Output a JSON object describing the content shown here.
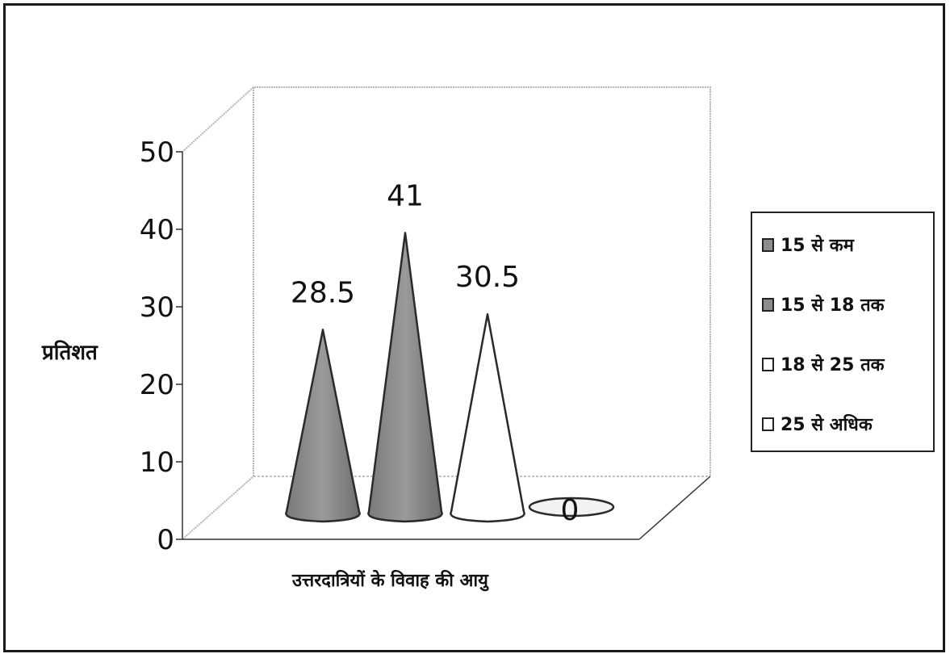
{
  "chart_data": {
    "type": "bar",
    "bar_shape": "cone",
    "categories": [
      "15 से कम",
      "15 से 18 तक",
      "18 से 25 तक",
      "25 से अधिक"
    ],
    "values": [
      28.5,
      41,
      30.5,
      0
    ],
    "data_labels": [
      "28.5",
      "41",
      "30.5",
      "0"
    ],
    "colors": [
      "#8c8c8c",
      "#8c8c8c",
      "#ffffff",
      "#f2f2f2"
    ],
    "xlabel": "उत्तरदात्रियों के विवाह की आयु",
    "ylabel": "प्रतिशत",
    "ylim": [
      0,
      50
    ],
    "yticks": [
      "0",
      "10",
      "20",
      "30",
      "40",
      "50"
    ],
    "legend_position": "right",
    "grid": false
  }
}
